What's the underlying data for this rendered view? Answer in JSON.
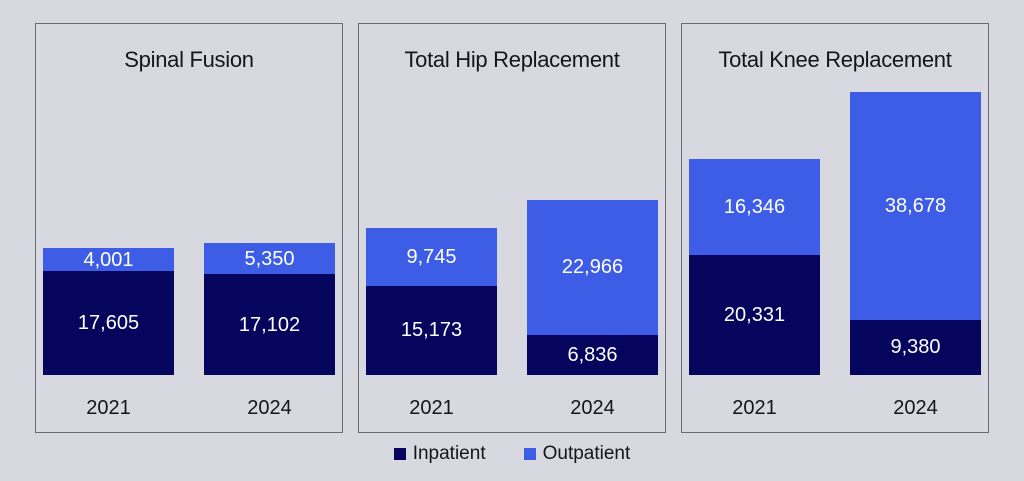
{
  "page": {
    "background_color": "#D8D8E0",
    "panel_border_color": "#6b6b74"
  },
  "colors": {
    "inpatient": "#05055E",
    "outpatient": "#3D5DE6",
    "value_label_text": "#FFFFFF",
    "axis_text": "#15151A"
  },
  "chart_data": {
    "type": "bar",
    "stacked": true,
    "orientation": "vertical",
    "grid": false,
    "legend_position": "bottom-center",
    "data_labels_inside_segments": true,
    "ylim": [
      0,
      48058
    ],
    "panels": [
      {
        "title": "Spinal Fusion",
        "categories": [
          "2021",
          "2024"
        ],
        "series": [
          {
            "name": "Inpatient",
            "values": [
              17605,
              17102
            ]
          },
          {
            "name": "Outpatient",
            "values": [
              4001,
              5350
            ]
          }
        ]
      },
      {
        "title": "Total Hip Replacement",
        "categories": [
          "2021",
          "2024"
        ],
        "series": [
          {
            "name": "Inpatient",
            "values": [
              15173,
              6836
            ]
          },
          {
            "name": "Outpatient",
            "values": [
              9745,
              22966
            ]
          }
        ]
      },
      {
        "title": "Total Knee Replacement",
        "categories": [
          "2021",
          "2024"
        ],
        "series": [
          {
            "name": "Inpatient",
            "values": [
              20331,
              9380
            ]
          },
          {
            "name": "Outpatient",
            "values": [
              16346,
              38678
            ]
          }
        ]
      }
    ],
    "legend": [
      {
        "label": "Inpatient",
        "color": "#05055E"
      },
      {
        "label": "Outpatient",
        "color": "#3D5DE6"
      }
    ]
  }
}
